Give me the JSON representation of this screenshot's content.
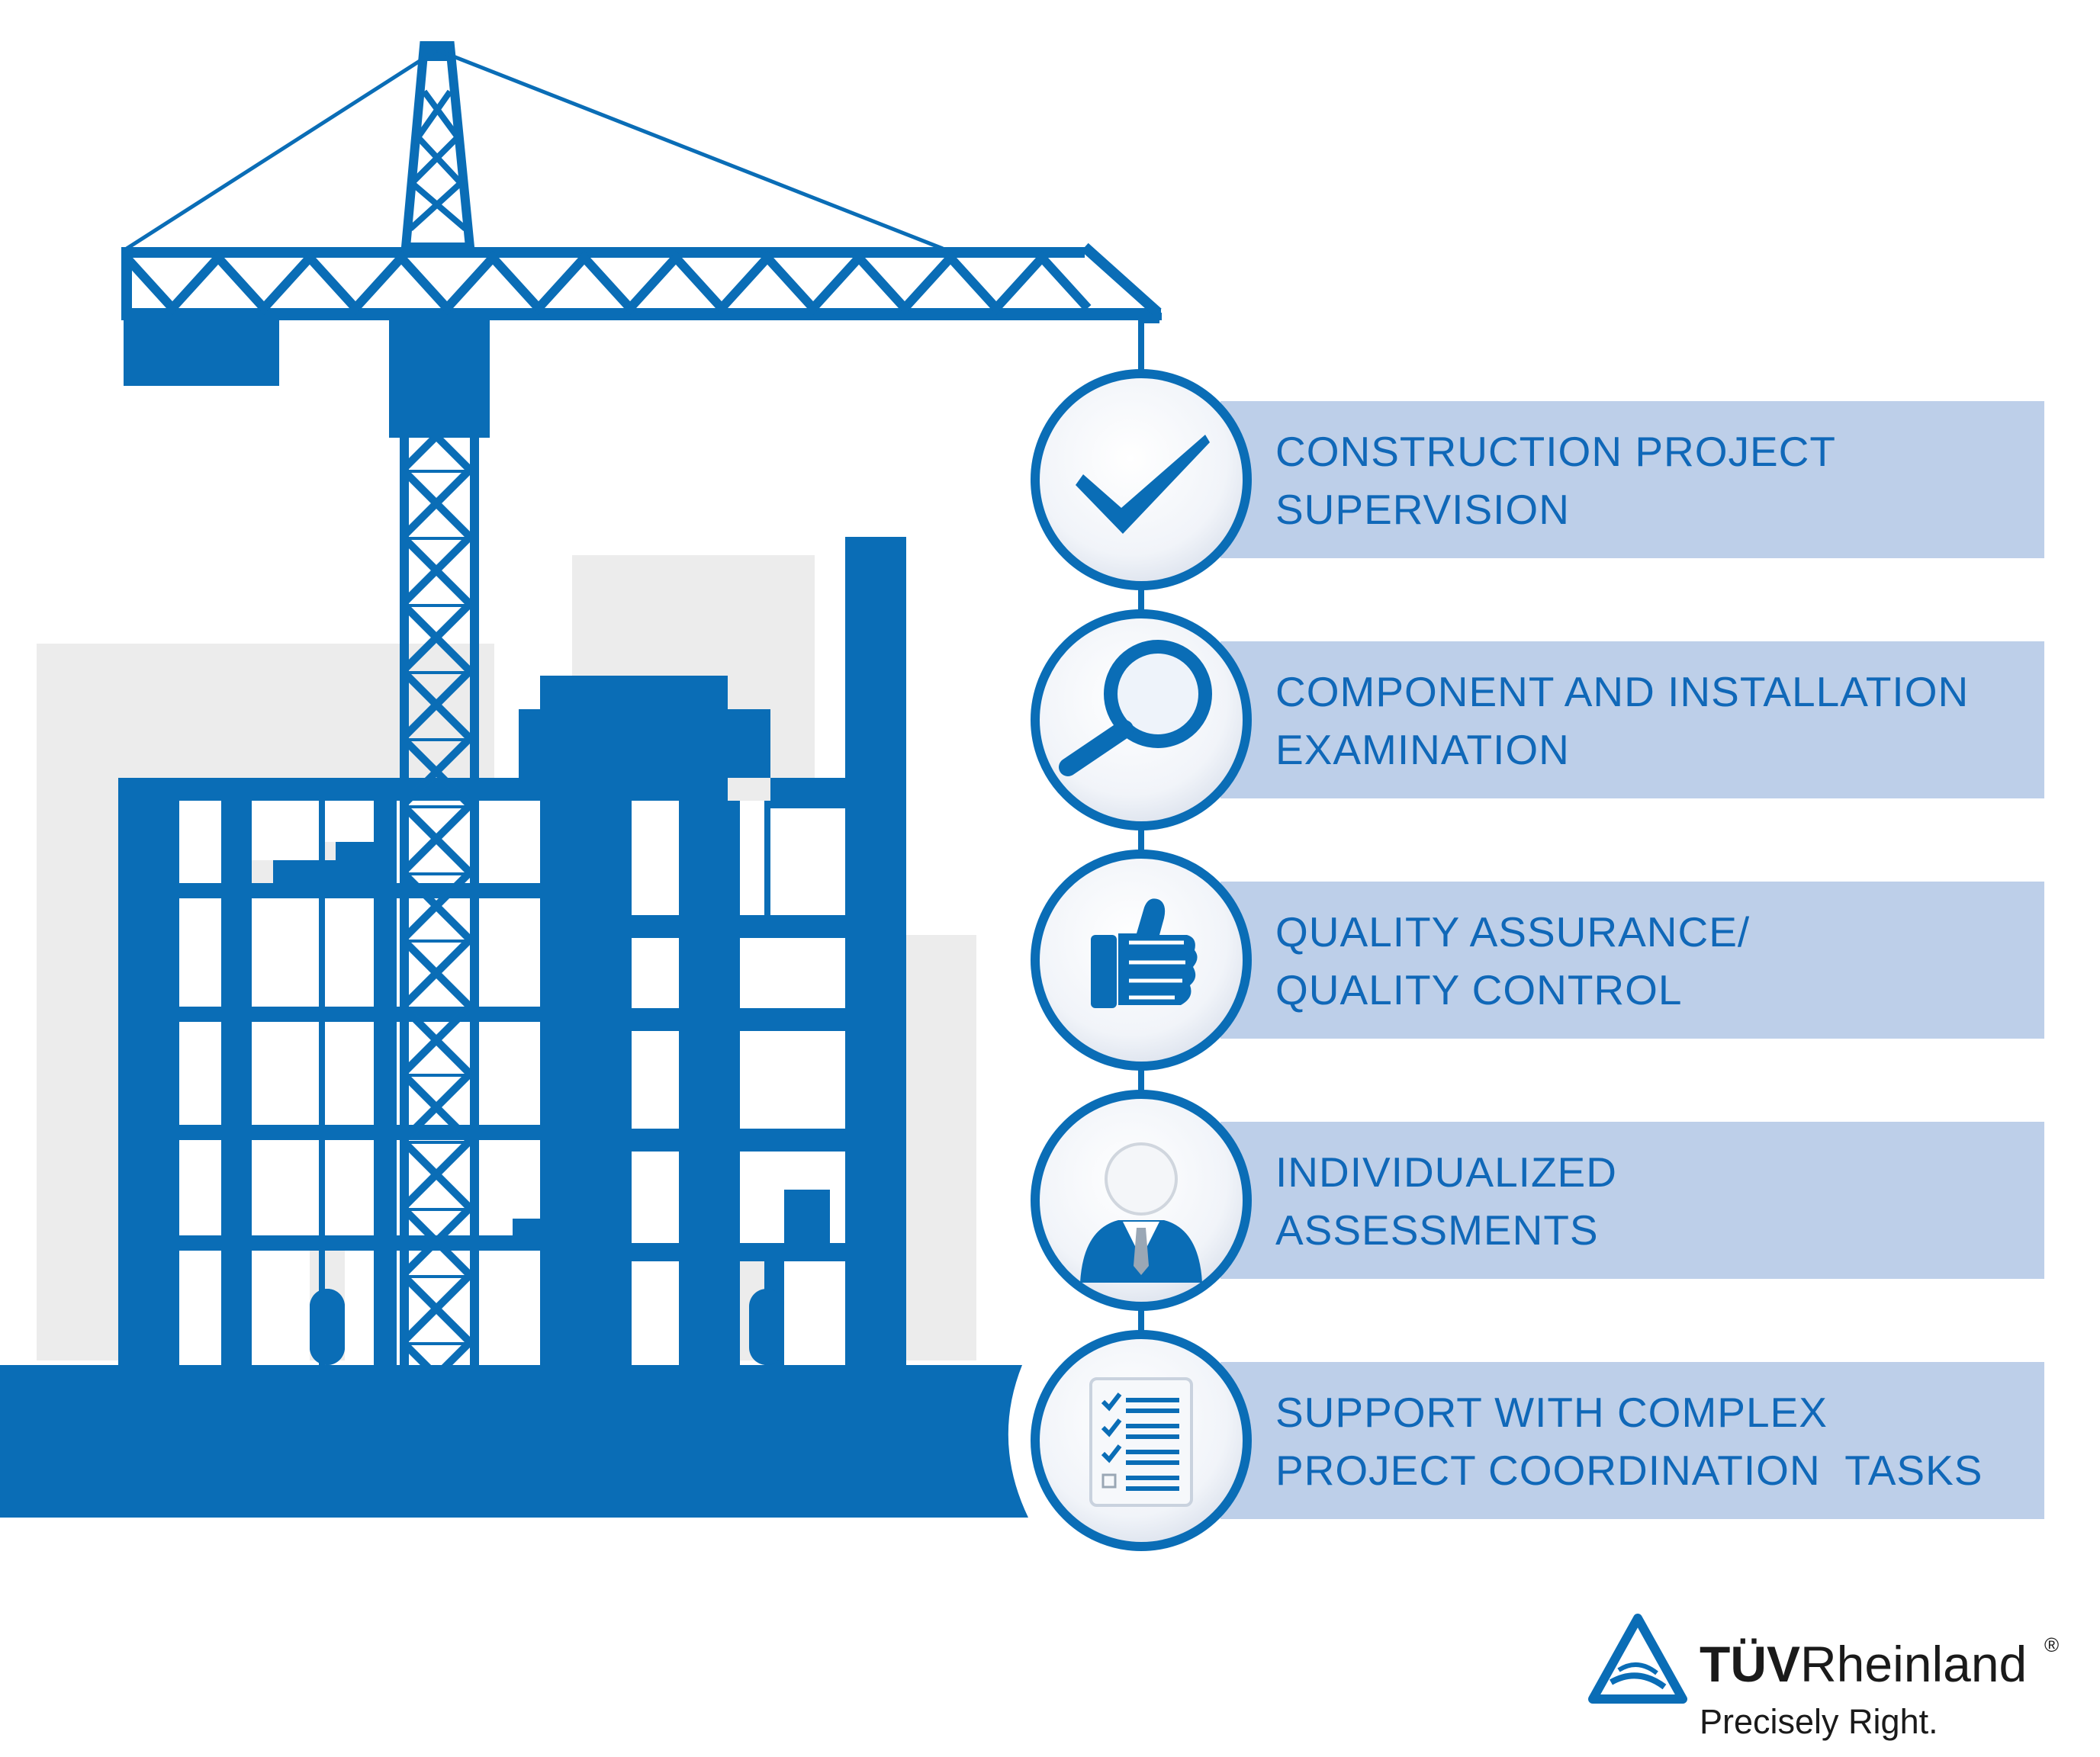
{
  "colors": {
    "primary_blue": "#0a6db6",
    "band_blue": "#bdcfe9",
    "text_blue": "#1068b8",
    "background_building_gray": "#ececec"
  },
  "services": [
    {
      "icon": "checkmark-icon",
      "line1": "CONSTRUCTION PROJECT",
      "line2": "SUPERVISION"
    },
    {
      "icon": "magnifier-icon",
      "line1": "COMPONENT AND INSTALLATION",
      "line2": "EXAMINATION"
    },
    {
      "icon": "thumbs-up-icon",
      "line1": "QUALITY ASSURANCE/",
      "line2": "QUALITY CONTROL"
    },
    {
      "icon": "person-icon",
      "line1": "INDIVIDUALIZED",
      "line2": "ASSESSMENTS"
    },
    {
      "icon": "checklist-icon",
      "line1": "SUPPORT WITH COMPLEX",
      "line2": "PROJECT COORDINATION  TASKS"
    }
  ],
  "logo": {
    "brand_bold": "TÜV",
    "brand_regular": "Rheinland",
    "registered": "®",
    "tagline": "Precisely Right."
  }
}
